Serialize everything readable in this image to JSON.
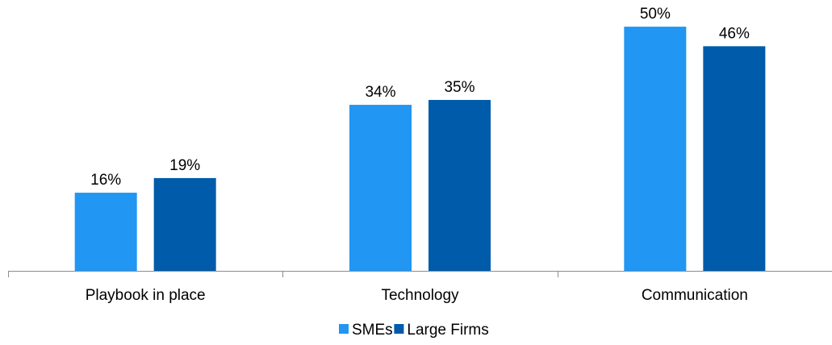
{
  "chart_data": {
    "type": "bar",
    "categories": [
      "Playbook in place",
      "Technology",
      "Communication"
    ],
    "series": [
      {
        "name": "SMEs",
        "values": [
          16,
          34,
          50
        ],
        "color": "#2196f3"
      },
      {
        "name": "Large Firms",
        "values": [
          19,
          35,
          46
        ],
        "color": "#005bab"
      }
    ],
    "value_format": "{v}%",
    "ylim": [
      0,
      52
    ],
    "grid": false,
    "legend": "bottom-center",
    "title": "",
    "xlabel": "",
    "ylabel": ""
  }
}
